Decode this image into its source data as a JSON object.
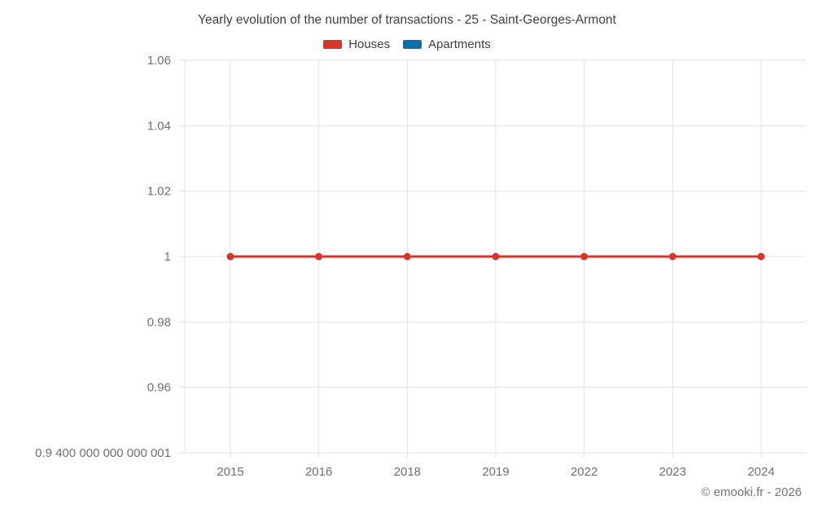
{
  "chart": {
    "title": "Yearly evolution of the number of transactions - 25 - Saint-Georges-Armont",
    "footer": "© emooki.fr - 2026"
  },
  "chart_data": {
    "type": "line",
    "title": "Yearly evolution of the number of transactions - 25 - Saint-Georges-Armont",
    "categories": [
      "2015",
      "2016",
      "2018",
      "2019",
      "2022",
      "2023",
      "2024"
    ],
    "series": [
      {
        "name": "Houses",
        "color": "#d7352c",
        "values": [
          1,
          1,
          1,
          1,
          1,
          1,
          1
        ]
      },
      {
        "name": "Apartments",
        "color": "#0f6fa6",
        "values": [
          null,
          null,
          null,
          null,
          null,
          null,
          null
        ]
      }
    ],
    "xlabel": "",
    "ylabel": "",
    "ylim": [
      0.94,
      1.06
    ],
    "yticks": [
      {
        "value": 1.06,
        "label": "1.06"
      },
      {
        "value": 1.04,
        "label": "1.04"
      },
      {
        "value": 1.02,
        "label": "1.02"
      },
      {
        "value": 1.0,
        "label": "1"
      },
      {
        "value": 0.98,
        "label": "0.98"
      },
      {
        "value": 0.96,
        "label": "0.96"
      },
      {
        "value": 0.94,
        "label": "0.9 400 000 000 000 001"
      }
    ],
    "grid": "on",
    "legend_position": "top",
    "grid_color": "#e3e3e3",
    "marker_radius": 4.5,
    "line_width": 3
  }
}
